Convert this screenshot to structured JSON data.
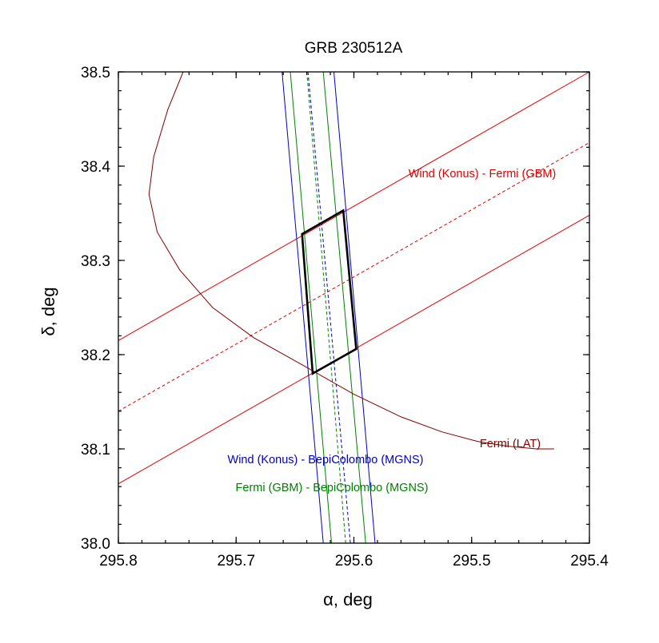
{
  "chart_data": {
    "type": "line",
    "title": "GRB 230512A",
    "xlabel": "α, deg",
    "ylabel": "δ, deg",
    "xlim": [
      295.8,
      295.4
    ],
    "ylim": [
      38.0,
      38.5
    ],
    "x_reversed": true,
    "grid": false,
    "x_ticks": [
      295.8,
      295.7,
      295.6,
      295.5,
      295.4
    ],
    "x_tick_labels": [
      "295.8",
      "295.7",
      "295.6",
      "295.5",
      "295.4"
    ],
    "y_ticks": [
      38.0,
      38.1,
      38.2,
      38.3,
      38.4,
      38.5
    ],
    "y_tick_labels": [
      "38.0",
      "38.1",
      "38.2",
      "38.3",
      "38.4",
      "38.5"
    ],
    "colors": {
      "konus_gbm": "#e00000",
      "konus_mgns": "#0000c0",
      "gbm_mgns": "#008000",
      "lat": "#800000",
      "box": "#000000"
    },
    "annotations": [
      {
        "text": "Wind (Konus) - Fermi (GBM)",
        "color": "#e00000"
      },
      {
        "text": "Wind (Konus) - BepiColombo (MGNS)",
        "color": "#0000c0"
      },
      {
        "text": "Fermi (GBM) - BepiColombo (MGNS)",
        "color": "#008000"
      },
      {
        "text": "Fermi (LAT)",
        "color": "#800000"
      }
    ],
    "series": [
      {
        "key": "konus_gbm_upper",
        "color": "#e00000",
        "dash": false,
        "x": [
          295.8,
          295.4
        ],
        "y": [
          38.215,
          38.5
        ]
      },
      {
        "key": "konus_gbm_center",
        "color": "#e00000",
        "dash": true,
        "x": [
          295.8,
          295.4
        ],
        "y": [
          38.14,
          38.425
        ]
      },
      {
        "key": "konus_gbm_lower",
        "color": "#e00000",
        "dash": false,
        "x": [
          295.8,
          295.4
        ],
        "y": [
          38.063,
          38.348
        ]
      },
      {
        "key": "konus_mgns_left",
        "color": "#0000c0",
        "dash": false,
        "x": [
          295.661,
          295.626
        ],
        "y": [
          38.5,
          38.0
        ]
      },
      {
        "key": "konus_mgns_center",
        "color": "#0000c0",
        "dash": true,
        "x": [
          295.639,
          295.603
        ],
        "y": [
          38.5,
          38.0
        ]
      },
      {
        "key": "konus_mgns_right",
        "color": "#0000c0",
        "dash": false,
        "x": [
          295.617,
          295.582
        ],
        "y": [
          38.5,
          38.0
        ]
      },
      {
        "key": "gbm_mgns_left",
        "color": "#008000",
        "dash": false,
        "x": [
          295.654,
          295.619
        ],
        "y": [
          38.5,
          38.0
        ]
      },
      {
        "key": "gbm_mgns_center",
        "color": "#008000",
        "dash": true,
        "x": [
          295.64,
          295.607
        ],
        "y": [
          38.5,
          38.0
        ]
      },
      {
        "key": "gbm_mgns_right",
        "color": "#008000",
        "dash": false,
        "x": [
          295.626,
          295.59
        ],
        "y": [
          38.5,
          38.0
        ]
      },
      {
        "key": "lat",
        "color": "#800000",
        "dash": false,
        "x": [
          295.745,
          295.758,
          295.77,
          295.774,
          295.767,
          295.748,
          295.72,
          295.685,
          295.645,
          295.6,
          295.56,
          295.525,
          295.495,
          295.47,
          295.445,
          295.43
        ],
        "y": [
          38.5,
          38.46,
          38.41,
          38.37,
          38.33,
          38.29,
          38.25,
          38.218,
          38.19,
          38.158,
          38.134,
          38.118,
          38.108,
          38.103,
          38.1,
          38.1
        ]
      },
      {
        "key": "error_box",
        "color": "#000000",
        "dash": false,
        "closed": true,
        "x": [
          295.644,
          295.609,
          295.598,
          295.635
        ],
        "y": [
          38.328,
          38.353,
          38.206,
          38.18
        ]
      }
    ]
  }
}
